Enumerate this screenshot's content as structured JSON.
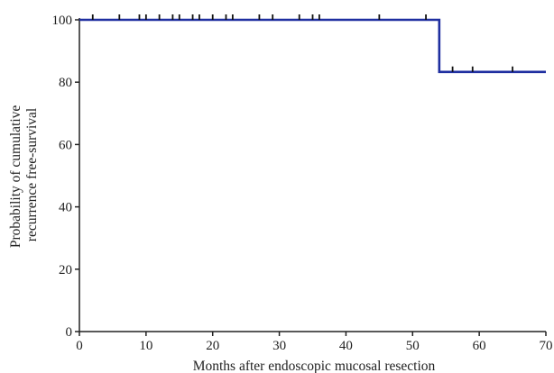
{
  "chart_data": {
    "type": "line",
    "title": "",
    "xlabel": "Months after endoscopic mucosal resection",
    "ylabel_lines": [
      "Probability of cumulative",
      "recurrence free-survival"
    ],
    "xlim": [
      0,
      70
    ],
    "ylim": [
      0,
      100
    ],
    "x_ticks": [
      0,
      10,
      20,
      30,
      40,
      50,
      60,
      70
    ],
    "y_ticks": [
      0,
      20,
      40,
      60,
      80,
      100
    ],
    "grid": false,
    "series": [
      {
        "step": "post",
        "color": "#1f2fa0",
        "points": [
          {
            "x": 0,
            "y": 100
          },
          {
            "x": 54,
            "y": 83.3
          },
          {
            "x": 70,
            "y": 83.3
          }
        ],
        "censored": [
          {
            "x": 2,
            "y": 100
          },
          {
            "x": 6,
            "y": 100
          },
          {
            "x": 9,
            "y": 100
          },
          {
            "x": 10,
            "y": 100
          },
          {
            "x": 12,
            "y": 100
          },
          {
            "x": 14,
            "y": 100
          },
          {
            "x": 15,
            "y": 100
          },
          {
            "x": 17,
            "y": 100
          },
          {
            "x": 18,
            "y": 100
          },
          {
            "x": 20,
            "y": 100
          },
          {
            "x": 22,
            "y": 100
          },
          {
            "x": 23,
            "y": 100
          },
          {
            "x": 27,
            "y": 100
          },
          {
            "x": 29,
            "y": 100
          },
          {
            "x": 33,
            "y": 100
          },
          {
            "x": 35,
            "y": 100
          },
          {
            "x": 36,
            "y": 100
          },
          {
            "x": 45,
            "y": 100
          },
          {
            "x": 52,
            "y": 100
          },
          {
            "x": 56,
            "y": 83.3
          },
          {
            "x": 59,
            "y": 83.3
          },
          {
            "x": 65,
            "y": 83.3
          }
        ]
      }
    ]
  }
}
